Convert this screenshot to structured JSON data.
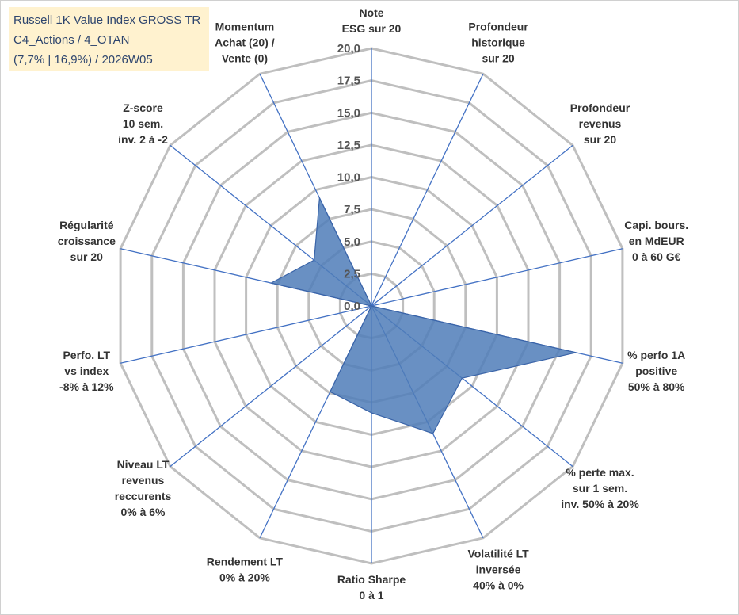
{
  "chart_data": {
    "type": "radar",
    "title_lines": [
      "Russell 1K Value Index GROSS TR",
      "C4_Actions / 4_OTAN",
      "(7,7% | 16,9%) / 2026W05"
    ],
    "radial_range": [
      0,
      20
    ],
    "radial_ticks": [
      "0,0",
      "2,5",
      "5,0",
      "7,5",
      "10,0",
      "12,5",
      "15,0",
      "17,5",
      "20,0"
    ],
    "axes": [
      [
        "Note",
        "ESG sur 20"
      ],
      [
        "Profondeur",
        "historique",
        "sur 20"
      ],
      [
        "Profondeur",
        "revenus",
        "sur 20"
      ],
      [
        "Capi. bours.",
        "en MdEUR",
        "0 à 60 G€"
      ],
      [
        "% perfo 1A",
        "positive",
        "50% à 80%"
      ],
      [
        "% perte max.",
        "sur 1 sem.",
        "inv. 50% à 20%"
      ],
      [
        "Volatilité LT",
        "inversée",
        "40% à 0%"
      ],
      [
        "Ratio Sharpe",
        "0 à 1"
      ],
      [
        "Rendement LT",
        "0% à 20%"
      ],
      [
        "Niveau LT",
        "revenus",
        "reccurents",
        "0% à 6%"
      ],
      [
        "Perfo. LT",
        "vs index",
        "-8% à 12%"
      ],
      [
        "Régularité",
        "croissance",
        "sur 20"
      ],
      [
        "Z-score",
        "10 sem.",
        "inv. 2 à -2"
      ],
      [
        "Momentum",
        "Achat (20) /",
        "Vente (0)"
      ]
    ],
    "series": [
      {
        "name": "Russell 1K Value Index GROSS TR",
        "values": [
          0,
          0,
          0,
          0,
          16.3,
          9,
          11,
          8.3,
          7.4,
          0,
          0,
          8.0,
          5.7,
          9.3
        ]
      }
    ],
    "colors": {
      "fill": "#4f7cb8",
      "stroke": "#3a64a8",
      "grid": "#bfbfbf",
      "spoke": "#4472c4"
    }
  }
}
